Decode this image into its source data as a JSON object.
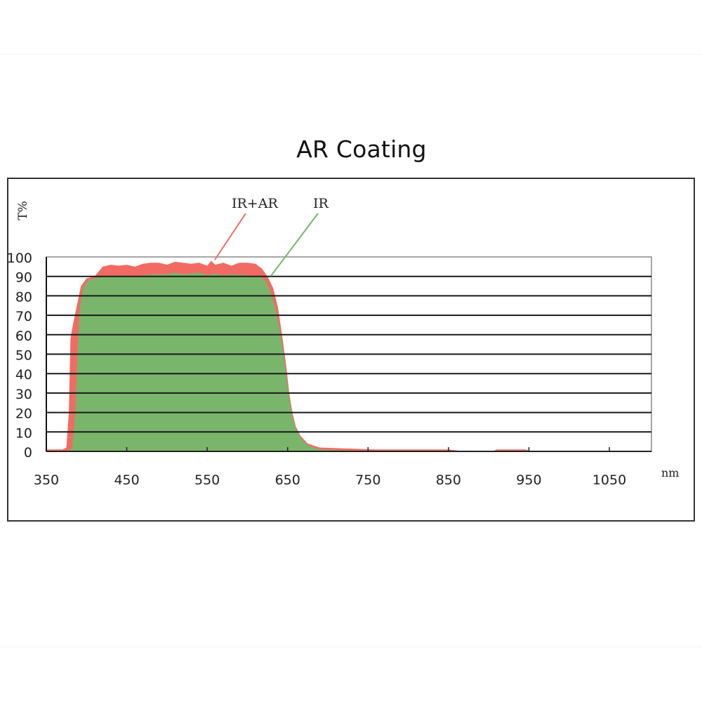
{
  "title": "AR Coating",
  "chart_data": {
    "type": "area",
    "title": "AR Coating",
    "xlabel": "nm",
    "ylabel": "T%",
    "xlim": [
      350,
      1102
    ],
    "ylim": [
      0,
      100
    ],
    "x_ticks": [
      350,
      450,
      550,
      650,
      750,
      850,
      950,
      1050
    ],
    "y_ticks": [
      0,
      10,
      20,
      30,
      40,
      50,
      60,
      70,
      80,
      90,
      100
    ],
    "grid": "horizontal",
    "legend": "callout labels above curves",
    "series": [
      {
        "name": "IR+AR",
        "color": "#f26b63",
        "points": [
          [
            350,
            1
          ],
          [
            370,
            1
          ],
          [
            375,
            2
          ],
          [
            378,
            20
          ],
          [
            380,
            58
          ],
          [
            383,
            65
          ],
          [
            388,
            75
          ],
          [
            393,
            85
          ],
          [
            400,
            89
          ],
          [
            410,
            90
          ],
          [
            420,
            95
          ],
          [
            430,
            96
          ],
          [
            440,
            95.5
          ],
          [
            450,
            96
          ],
          [
            460,
            95
          ],
          [
            470,
            96.5
          ],
          [
            480,
            97
          ],
          [
            490,
            97
          ],
          [
            500,
            96
          ],
          [
            510,
            97.5
          ],
          [
            520,
            97
          ],
          [
            530,
            96.5
          ],
          [
            540,
            97
          ],
          [
            550,
            95.5
          ],
          [
            555,
            98
          ],
          [
            560,
            96
          ],
          [
            570,
            97
          ],
          [
            580,
            95.5
          ],
          [
            590,
            97
          ],
          [
            600,
            97
          ],
          [
            610,
            96.5
          ],
          [
            618,
            94
          ],
          [
            625,
            90
          ],
          [
            632,
            84
          ],
          [
            638,
            74
          ],
          [
            643,
            60
          ],
          [
            648,
            45
          ],
          [
            652,
            30
          ],
          [
            656,
            20
          ],
          [
            660,
            13
          ],
          [
            666,
            8
          ],
          [
            675,
            4
          ],
          [
            690,
            2
          ],
          [
            720,
            1.5
          ],
          [
            760,
            1
          ],
          [
            800,
            1
          ],
          [
            850,
            1
          ],
          [
            860,
            0.5
          ],
          [
            870,
            0
          ],
          [
            905,
            0
          ],
          [
            910,
            1
          ],
          [
            945,
            1
          ],
          [
            950,
            0.5
          ],
          [
            960,
            0
          ],
          [
            1102,
            0
          ]
        ]
      },
      {
        "name": "IR",
        "color": "#79b56a",
        "points": [
          [
            350,
            0
          ],
          [
            378,
            0
          ],
          [
            382,
            2
          ],
          [
            386,
            20
          ],
          [
            389,
            55
          ],
          [
            392,
            75
          ],
          [
            396,
            84
          ],
          [
            402,
            88
          ],
          [
            410,
            89
          ],
          [
            420,
            90
          ],
          [
            440,
            90.5
          ],
          [
            460,
            90
          ],
          [
            480,
            91
          ],
          [
            500,
            91
          ],
          [
            510,
            92
          ],
          [
            520,
            91
          ],
          [
            540,
            92
          ],
          [
            550,
            90.5
          ],
          [
            560,
            91.5
          ],
          [
            570,
            90.5
          ],
          [
            580,
            91
          ],
          [
            600,
            90.5
          ],
          [
            615,
            90
          ],
          [
            622,
            88
          ],
          [
            628,
            83
          ],
          [
            634,
            75
          ],
          [
            640,
            63
          ],
          [
            645,
            50
          ],
          [
            649,
            36
          ],
          [
            653,
            25
          ],
          [
            657,
            16
          ],
          [
            662,
            10
          ],
          [
            668,
            6
          ],
          [
            676,
            3
          ],
          [
            690,
            1
          ],
          [
            720,
            0.5
          ],
          [
            760,
            0.3
          ],
          [
            1102,
            0.2
          ]
        ]
      }
    ],
    "annotations": [
      {
        "text": "IR+AR",
        "points_to": "IR+AR curve near 550 nm, ~97%"
      },
      {
        "text": "IR",
        "points_to": "IR curve near 630 nm, ~90%"
      }
    ]
  },
  "labels": {
    "ylabel": "T%",
    "xlabel": "nm",
    "callout_irar": "IR+AR",
    "callout_ir": "IR",
    "y_ticks": [
      "0",
      "10",
      "20",
      "30",
      "40",
      "50",
      "60",
      "70",
      "80",
      "90",
      "100"
    ],
    "x_ticks": [
      "350",
      "450",
      "550",
      "650",
      "750",
      "850",
      "950",
      "1050"
    ]
  }
}
